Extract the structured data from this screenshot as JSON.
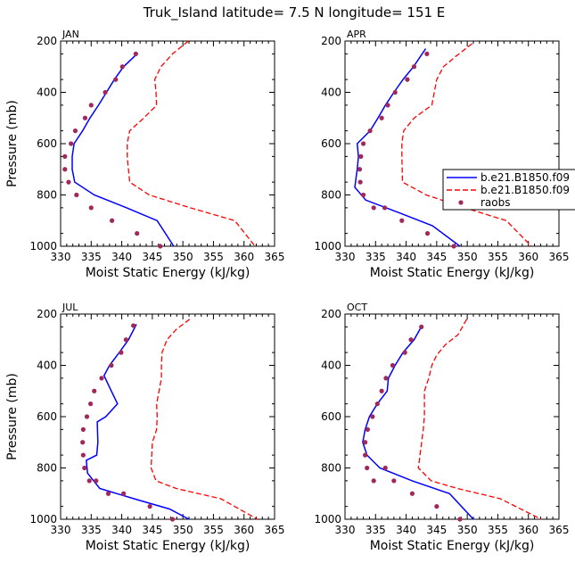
{
  "figure_title": "Truk_Island  latitude= 7.5 N longitude= 151 E",
  "legend": {
    "entries": [
      "b.e21.B1850.f09",
      "b.e21.B1850.f09",
      "raobs"
    ]
  },
  "colors": {
    "model_solid": "#0000ff",
    "model_dashed": "#ff0000",
    "raobs": "#a0285a"
  },
  "chart_data": [
    {
      "type": "line",
      "title": "JAN",
      "xlabel": "Moist Static Energy (kJ/kg)",
      "ylabel": "Pressure (mb)",
      "xlim": [
        330,
        365
      ],
      "ylim": [
        1000,
        200
      ],
      "xticks": [
        330,
        335,
        340,
        345,
        350,
        355,
        360,
        365
      ],
      "yticks": [
        200,
        400,
        600,
        800,
        1000
      ],
      "series": [
        {
          "style": "solid",
          "color": "#0000ff",
          "x": [
            342.5,
            340.3,
            338.8,
            337.5,
            336.2,
            334.8,
            333.6,
            332.2,
            331.9,
            331.9,
            332.3,
            335.5,
            340.8,
            345.8,
            348.5
          ],
          "y": [
            250,
            300,
            350,
            400,
            450,
            500,
            550,
            600,
            650,
            700,
            750,
            800,
            850,
            900,
            1000
          ]
        },
        {
          "style": "dashed",
          "color": "#ff0000",
          "x": [
            350.9,
            348.3,
            346.4,
            345.4,
            345.6,
            345.7,
            343.6,
            341.3,
            340.9,
            340.9,
            341.3,
            344.5,
            351.2,
            358.5,
            361.8
          ],
          "y": [
            200,
            250,
            300,
            350,
            400,
            450,
            500,
            550,
            600,
            650,
            750,
            800,
            850,
            900,
            1000
          ]
        },
        {
          "style": "points",
          "color": "#a0285a",
          "x": [
            342.3,
            340.1,
            339.0,
            337.3,
            335.0,
            334.0,
            332.4,
            331.7,
            330.7,
            330.7,
            331.3,
            332.6,
            335.0,
            338.4,
            342.5,
            346.3
          ],
          "y": [
            250,
            300,
            350,
            400,
            450,
            500,
            550,
            600,
            650,
            700,
            750,
            800,
            850,
            900,
            950,
            1000
          ]
        }
      ]
    },
    {
      "type": "line",
      "title": "APR",
      "xlabel": "Moist Static Energy (kJ/kg)",
      "ylabel": "",
      "xlim": [
        330,
        365
      ],
      "ylim": [
        1000,
        200
      ],
      "xticks": [
        330,
        335,
        340,
        345,
        350,
        355,
        360,
        365
      ],
      "yticks": [
        200,
        400,
        600,
        800,
        1000
      ],
      "series": [
        {
          "style": "solid",
          "color": "#0000ff",
          "x": [
            343.2,
            341.2,
            339.5,
            338.0,
            336.6,
            335.4,
            334.1,
            332.0,
            332.2,
            332.0,
            331.6,
            333.4,
            338.9,
            344.3,
            348.8
          ],
          "y": [
            230,
            300,
            350,
            400,
            450,
            500,
            550,
            600,
            650,
            700,
            770,
            820,
            870,
            920,
            1000
          ]
        },
        {
          "style": "dashed",
          "color": "#ff0000",
          "x": [
            350.8,
            348.1,
            346.1,
            345.0,
            344.6,
            344.2,
            341.3,
            339.6,
            339.3,
            339.3,
            339.4,
            343.3,
            349.6,
            356.4,
            360.5
          ],
          "y": [
            210,
            260,
            300,
            350,
            400,
            450,
            500,
            550,
            600,
            650,
            750,
            800,
            850,
            900,
            1000
          ]
        },
        {
          "style": "points",
          "color": "#a0285a",
          "x": [
            343.4,
            341.3,
            340.2,
            338.2,
            337.0,
            336.0,
            334.1,
            333.0,
            332.6,
            332.4,
            332.5,
            333.0,
            334.7,
            336.5,
            339.3,
            343.5,
            347.8
          ],
          "y": [
            250,
            300,
            350,
            400,
            450,
            500,
            550,
            600,
            650,
            700,
            750,
            800,
            850,
            850,
            900,
            950,
            1000
          ]
        }
      ]
    },
    {
      "type": "line",
      "title": "JUL",
      "xlabel": "Moist Static Energy (kJ/kg)",
      "ylabel": "Pressure (mb)",
      "xlim": [
        330,
        365
      ],
      "ylim": [
        1000,
        200
      ],
      "xticks": [
        330,
        335,
        340,
        345,
        350,
        355,
        360,
        365
      ],
      "yticks": [
        200,
        400,
        600,
        800,
        1000
      ],
      "series": [
        {
          "style": "solid",
          "color": "#0000ff",
          "x": [
            342.4,
            341.1,
            339.6,
            338.0,
            337.1,
            338.3,
            339.3,
            337.4,
            336.0,
            336.1,
            335.9,
            334.2,
            334.4,
            336.4,
            342.0,
            347.8,
            351.0
          ],
          "y": [
            240,
            300,
            350,
            400,
            440,
            500,
            550,
            600,
            620,
            700,
            750,
            770,
            820,
            880,
            920,
            960,
            1000
          ]
        },
        {
          "style": "dashed",
          "color": "#ff0000",
          "x": [
            351.1,
            348.9,
            347.4,
            346.6,
            346.5,
            346.5,
            346.1,
            345.7,
            345.8,
            345.7,
            345.0,
            344.8,
            345.6,
            348.9,
            356.2,
            362.2
          ],
          "y": [
            220,
            260,
            300,
            350,
            400,
            450,
            500,
            550,
            600,
            650,
            700,
            800,
            850,
            880,
            920,
            1000
          ]
        },
        {
          "style": "points",
          "color": "#a0285a",
          "x": [
            341.9,
            340.7,
            339.9,
            338.3,
            336.7,
            335.5,
            334.9,
            334.3,
            333.7,
            333.6,
            333.7,
            333.9,
            334.7,
            335.8,
            337.8,
            340.3,
            344.6,
            348.3
          ],
          "y": [
            245,
            300,
            350,
            400,
            450,
            500,
            550,
            600,
            650,
            700,
            750,
            800,
            850,
            850,
            900,
            900,
            950,
            1000
          ]
        }
      ]
    },
    {
      "type": "line",
      "title": "OCT",
      "xlabel": "Moist Static Energy (kJ/kg)",
      "ylabel": "",
      "xlim": [
        330,
        365
      ],
      "ylim": [
        1000,
        200
      ],
      "xticks": [
        330,
        335,
        340,
        345,
        350,
        355,
        360,
        365
      ],
      "yticks": [
        200,
        400,
        600,
        800,
        1000
      ],
      "series": [
        {
          "style": "solid",
          "color": "#0000ff",
          "x": [
            342.6,
            341.3,
            339.5,
            338.2,
            337.1,
            336.9,
            335.3,
            334.0,
            333.3,
            332.9,
            333.6,
            335.7,
            341.0,
            347.1,
            351.0
          ],
          "y": [
            245,
            300,
            350,
            400,
            450,
            500,
            550,
            600,
            650,
            700,
            750,
            800,
            850,
            900,
            1000
          ]
        },
        {
          "style": "dashed",
          "color": "#ff0000",
          "x": [
            349.9,
            348.5,
            346.4,
            345.0,
            344.2,
            343.7,
            343.0,
            343.0,
            343.0,
            342.8,
            342.0,
            344.1,
            348.4,
            355.4,
            362.1
          ],
          "y": [
            220,
            280,
            320,
            360,
            400,
            450,
            500,
            550,
            600,
            650,
            800,
            850,
            880,
            920,
            1000
          ]
        },
        {
          "style": "points",
          "color": "#a0285a",
          "x": [
            342.5,
            340.8,
            339.8,
            337.8,
            336.7,
            336.0,
            335.3,
            334.5,
            333.7,
            333.3,
            333.3,
            333.6,
            334.7,
            336.6,
            338.0,
            341.0,
            345.0,
            348.8
          ],
          "y": [
            250,
            300,
            350,
            400,
            450,
            500,
            550,
            600,
            650,
            700,
            750,
            800,
            850,
            800,
            850,
            900,
            950,
            1000
          ]
        }
      ]
    }
  ]
}
